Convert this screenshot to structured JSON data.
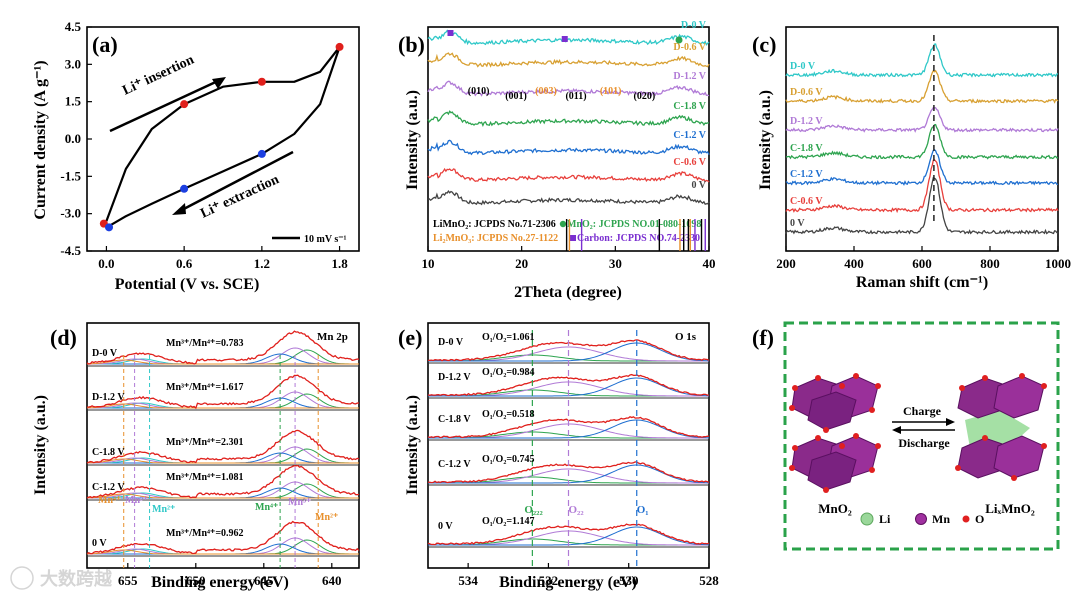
{
  "panels": {
    "a": "(a)",
    "b": "(b)",
    "c": "(c)",
    "d": "(d)",
    "e": "(e)",
    "f": "(f)"
  },
  "chart_data": [
    {
      "id": "a",
      "type": "line",
      "xlabel": "Potential (V vs. SCE)",
      "ylabel": "Current density (A g⁻¹)",
      "xlim": [
        -0.15,
        1.95
      ],
      "ylim": [
        -4.5,
        4.5
      ],
      "xticks": [
        "0.0",
        "0.6",
        "1.2",
        "1.8"
      ],
      "yticks": [
        "-4.5",
        "-3.0",
        "-1.5",
        "0.0",
        "1.5",
        "3.0",
        "4.5"
      ],
      "series": [
        {
          "role": "upper",
          "x": [
            0.0,
            0.15,
            0.35,
            0.6,
            0.9,
            1.2,
            1.45,
            1.65,
            1.8
          ],
          "y": [
            -3.3,
            -1.2,
            0.4,
            1.4,
            2.1,
            2.3,
            2.3,
            2.7,
            3.7
          ]
        },
        {
          "role": "lower",
          "x": [
            1.8,
            1.65,
            1.45,
            1.2,
            0.9,
            0.6,
            0.35,
            0.15,
            0.02
          ],
          "y": [
            3.7,
            1.4,
            0.2,
            -0.6,
            -1.3,
            -2.0,
            -2.6,
            -3.1,
            -3.5
          ]
        }
      ],
      "markers_red": [
        {
          "x": 0.6,
          "y": 1.4
        },
        {
          "x": 1.2,
          "y": 2.3
        },
        {
          "x": 1.8,
          "y": 3.7
        },
        {
          "x": -0.02,
          "y": -3.4
        }
      ],
      "markers_blue": [
        {
          "x": 1.2,
          "y": -0.6
        },
        {
          "x": 0.6,
          "y": -2.0
        },
        {
          "x": 0.02,
          "y": -3.55
        }
      ],
      "annotations": {
        "insertion": "Li⁺ insertion",
        "extraction": "Li⁺ extraction",
        "scan": "10 mV s⁻¹"
      }
    },
    {
      "id": "b",
      "type": "line",
      "xlabel": "2Theta (degree)",
      "ylabel": "Intensity (a.u.)",
      "xlim": [
        10,
        40
      ],
      "xticks": [
        "10",
        "20",
        "30",
        "40"
      ],
      "series": [
        {
          "name": "0 V",
          "color": "#444444"
        },
        {
          "name": "C-0.6 V",
          "color": "#e8403c"
        },
        {
          "name": "C-1.2 V",
          "color": "#1f6fd0"
        },
        {
          "name": "C-1.8 V",
          "color": "#2ea44f"
        },
        {
          "name": "D-1.2 V",
          "color": "#b07ad6"
        },
        {
          "name": "D-0.6 V",
          "color": "#d8a032"
        },
        {
          "name": "D-0 V",
          "color": "#2fc8c8"
        }
      ],
      "hkl": [
        "(010)",
        "(001)",
        "(003)",
        "(011)",
        "(101)",
        "(020)"
      ],
      "references": [
        {
          "text": "LiMnO₂: JCPDS No.71-2306",
          "color": "#000000"
        },
        {
          "text": "MnO₂: JCPDS NO.01-080-1098",
          "color": "#2ea44f"
        },
        {
          "text": "Li₂MnO₃: JCPDS No.27-1122",
          "color": "#e8902c"
        },
        {
          "text": "Carbon: JCPDS NO.74-2330",
          "color": "#7a2fd0"
        }
      ],
      "ref_positions": {
        "LiMnO2": [
          24.8,
          34.7,
          37.3,
          37.8,
          39.2
        ],
        "Li2MnO3": [
          25.1,
          36.9,
          38.0
        ],
        "Carbon": [
          26.4,
          38.5,
          39.6
        ]
      }
    },
    {
      "id": "c",
      "type": "line",
      "xlabel": "Raman shift (cm⁻¹)",
      "ylabel": "Intensity (a.u.)",
      "xlim": [
        200,
        1000
      ],
      "xticks": [
        "200",
        "400",
        "600",
        "800",
        "1000"
      ],
      "series": [
        {
          "name": "0 V",
          "color": "#444444"
        },
        {
          "name": "C-0.6 V",
          "color": "#e8403c"
        },
        {
          "name": "C-1.2 V",
          "color": "#1f6fd0"
        },
        {
          "name": "C-1.8 V",
          "color": "#2ea44f"
        },
        {
          "name": "D-1.2 V",
          "color": "#b07ad6"
        },
        {
          "name": "D-0.6 V",
          "color": "#d8a032"
        },
        {
          "name": "D-0 V",
          "color": "#2fc8c8"
        }
      ],
      "peak": 635
    },
    {
      "id": "d",
      "type": "line",
      "xlabel": "Binding energy (eV)",
      "ylabel": "Intensity (a.u.)",
      "xlim": [
        658,
        638
      ],
      "xticks": [
        "655",
        "650",
        "645",
        "640"
      ],
      "title": "Mn 2p",
      "ratios": [
        {
          "sample": "D-0 V",
          "ratio": "Mn³⁺/Mn⁴⁺=0.783"
        },
        {
          "sample": "D-1.2 V",
          "ratio": "Mn³⁺/Mn⁴⁺=1.617"
        },
        {
          "sample": "C-1.8 V",
          "ratio": "Mn³⁺/Mn⁴⁺=2.301"
        },
        {
          "sample": "C-1.2 V",
          "ratio": "Mn³⁺/Mn⁴⁺=1.081"
        },
        {
          "sample": "0 V",
          "ratio": "Mn³⁺/Mn⁴⁺=0.962"
        }
      ],
      "peak_labels": [
        "Mn⁴⁺",
        "Mn³⁺",
        "Mn²⁺",
        "Mn⁴⁺",
        "Mn³⁺",
        "Mn²⁺"
      ]
    },
    {
      "id": "e",
      "type": "line",
      "xlabel": "Binding energy (eV)",
      "ylabel": "Intensity (a.u.)",
      "xlim": [
        535,
        528
      ],
      "xticks": [
        "534",
        "532",
        "530",
        "528"
      ],
      "title": "O 1s",
      "ratios": [
        {
          "sample": "D-0 V",
          "ratio": "O₁/O₂=1.061"
        },
        {
          "sample": "D-1.2 V",
          "ratio": "O₁/O₂=0.984"
        },
        {
          "sample": "C-1.8 V",
          "ratio": "O₁/O₂=0.518"
        },
        {
          "sample": "C-1.2 V",
          "ratio": "O₁/O₂=0.745"
        },
        {
          "sample": "0 V",
          "ratio": "O₁/O₂=1.147"
        }
      ],
      "peak_labels": [
        "O₂₂₂",
        "O₂₂",
        "O₁"
      ]
    }
  ],
  "scheme": {
    "left": "MnO₂",
    "right": "LiₓMnO₂",
    "charge": "Charge",
    "discharge": "Discharge",
    "legend_li": "Li",
    "legend_mn": "Mn",
    "legend_o": "O"
  },
  "watermark": "大数跨越"
}
